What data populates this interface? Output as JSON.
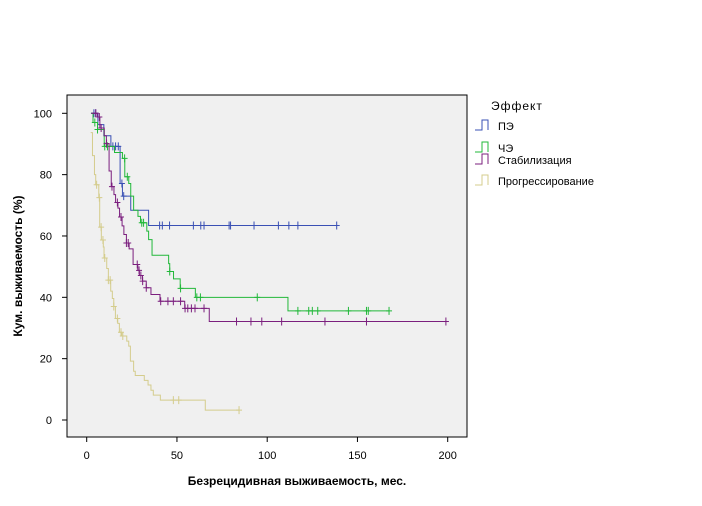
{
  "chart_data": {
    "type": "line",
    "subtype": "kaplan-meier step",
    "xlabel": "Безрецидивная выживаемость, мес.",
    "ylabel": "Кум. выживаемость (%)",
    "xlim": [
      -10,
      210
    ],
    "ylim": [
      -5,
      105
    ],
    "xticks": [
      "0",
      "50",
      "100",
      "150",
      "200"
    ],
    "yticks": [
      "0",
      "20",
      "40",
      "60",
      "80",
      "100"
    ],
    "grid": false,
    "background": "#f0f0f0",
    "legend": {
      "title": "Эффект",
      "position": "right"
    },
    "series": [
      {
        "name": "ПЭ",
        "color": "#3a50b4",
        "steps": [
          [
            2.5,
            100
          ],
          [
            6.2,
            96.3
          ],
          [
            9.5,
            92.7
          ],
          [
            13.4,
            89.2
          ],
          [
            18.5,
            77.1
          ],
          [
            19.8,
            73
          ],
          [
            24.4,
            68.4
          ],
          [
            34.3,
            63.4
          ]
        ],
        "end": 138.5,
        "censored": [
          4,
          5,
          14.5,
          16,
          17.5,
          19.5,
          20.5,
          40.4,
          41.9,
          45.9,
          59.1,
          63.2,
          65,
          78.9,
          79.7,
          92.7,
          106.2,
          112,
          117,
          138.5
        ]
      },
      {
        "name": "ЧЭ",
        "color": "#22b83a",
        "steps": [
          [
            2.5,
            100
          ],
          [
            3.5,
            97
          ],
          [
            6,
            94.7
          ],
          [
            9.7,
            89.2
          ],
          [
            15.4,
            87.2
          ],
          [
            19.8,
            85.3
          ],
          [
            21.1,
            79.3
          ],
          [
            23.3,
            77.1
          ],
          [
            24.4,
            73
          ],
          [
            26,
            68.4
          ],
          [
            28.4,
            66.4
          ],
          [
            29.8,
            64.3
          ],
          [
            33.3,
            61.6
          ],
          [
            34.3,
            58.8
          ],
          [
            36.2,
            53.7
          ],
          [
            45.4,
            51
          ],
          [
            46,
            48.4
          ],
          [
            48.1,
            46
          ],
          [
            51.8,
            42.9
          ],
          [
            60.2,
            40
          ],
          [
            111.5,
            35.6
          ]
        ],
        "end": 167.5,
        "censored": [
          4.5,
          6,
          10,
          11.5,
          21,
          22.5,
          30.5,
          31.5,
          46,
          52,
          61,
          63,
          94.5,
          117,
          123,
          125,
          128,
          145,
          155,
          156,
          167.5
        ]
      },
      {
        "name": "Стабилизация",
        "color": "#7b1f7e",
        "steps": [
          [
            2.5,
            100
          ],
          [
            5.9,
            98.8
          ],
          [
            7.3,
            95.2
          ],
          [
            9.7,
            92.7
          ],
          [
            10.9,
            90.1
          ],
          [
            12.4,
            81.2
          ],
          [
            13.6,
            76.1
          ],
          [
            15.1,
            73.5
          ],
          [
            16,
            70.9
          ],
          [
            17.3,
            69.1
          ],
          [
            18.2,
            66.2
          ],
          [
            19.6,
            63.3
          ],
          [
            20.6,
            60.5
          ],
          [
            22,
            57.7
          ],
          [
            23.5,
            55.8
          ],
          [
            25.7,
            50.7
          ],
          [
            28.3,
            48.8
          ],
          [
            29.2,
            47.1
          ],
          [
            30.9,
            45.3
          ],
          [
            33,
            43.1
          ],
          [
            35.6,
            40.9
          ],
          [
            40.6,
            38.7
          ],
          [
            54.3,
            36.4
          ],
          [
            67.9,
            32.1
          ]
        ],
        "end": 199,
        "censored": [
          5,
          7,
          8,
          11,
          14,
          17,
          19,
          22,
          23,
          28,
          29,
          30,
          31,
          33,
          41,
          45,
          48,
          52,
          54.5,
          56,
          58,
          60,
          65,
          83,
          91,
          97,
          108,
          132,
          155,
          199
        ]
      },
      {
        "name": "Прогрессирование",
        "color": "#d4cc8c",
        "steps": [
          [
            2.2,
            93.7
          ],
          [
            3.2,
            86.2
          ],
          [
            4.3,
            80
          ],
          [
            5,
            76.7
          ],
          [
            6.7,
            72.5
          ],
          [
            7.2,
            62.9
          ],
          [
            8.1,
            58.7
          ],
          [
            9.2,
            56.4
          ],
          [
            9.6,
            52.8
          ],
          [
            11.1,
            49.4
          ],
          [
            12,
            45.6
          ],
          [
            13.3,
            42
          ],
          [
            14.2,
            39.6
          ],
          [
            15,
            37
          ],
          [
            15.9,
            33.1
          ],
          [
            17.2,
            31.5
          ],
          [
            18.1,
            28.6
          ],
          [
            19.4,
            27.4
          ],
          [
            22.2,
            25.7
          ],
          [
            23.3,
            24.1
          ],
          [
            24.2,
            19.2
          ],
          [
            26,
            15.9
          ],
          [
            26.9,
            14.5
          ],
          [
            31.9,
            12.9
          ],
          [
            34,
            11.4
          ],
          [
            35.6,
            9.7
          ],
          [
            36.9,
            8.1
          ],
          [
            40.8,
            6.5
          ],
          [
            65.7,
            3.2
          ]
        ],
        "end": 84.4,
        "censored": [
          5.5,
          7,
          8,
          9,
          10,
          12,
          13,
          15,
          17,
          19,
          20,
          48,
          51,
          84.4
        ]
      }
    ]
  }
}
